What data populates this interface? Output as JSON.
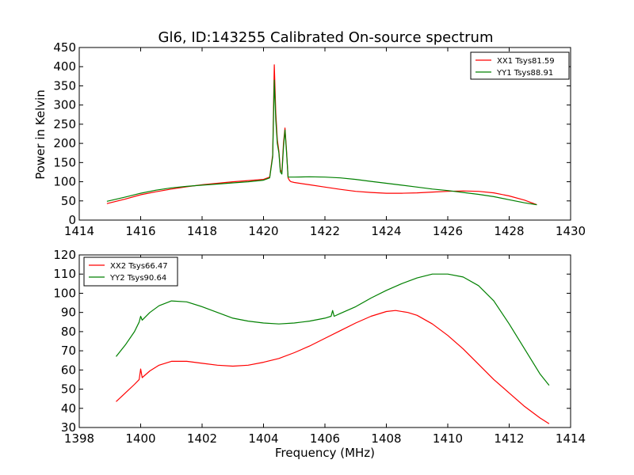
{
  "colors": {
    "series_red": "#ff0000",
    "series_green": "#008000",
    "frame": "#000000"
  },
  "chart_data": [
    {
      "type": "line",
      "title": "Gl6, ID:143255 Calibrated On-source spectrum",
      "xlabel": "",
      "ylabel": "Power in Kelvin",
      "xlim": [
        1414,
        1430
      ],
      "ylim": [
        0,
        450
      ],
      "xticks": [
        1414,
        1416,
        1418,
        1420,
        1422,
        1424,
        1426,
        1428,
        1430
      ],
      "yticks": [
        0,
        50,
        100,
        150,
        200,
        250,
        300,
        350,
        400,
        450
      ],
      "legend_position": "top-right",
      "series": [
        {
          "name": "XX1 Tsys81.59",
          "color": "#ff0000",
          "x": [
            1414.9,
            1415.5,
            1416.0,
            1416.5,
            1417.0,
            1417.5,
            1418.0,
            1418.5,
            1419.0,
            1419.5,
            1420.0,
            1420.2,
            1420.3,
            1420.35,
            1420.4,
            1420.45,
            1420.5,
            1420.55,
            1420.6,
            1420.65,
            1420.7,
            1420.75,
            1420.8,
            1420.85,
            1420.9,
            1421.0,
            1421.5,
            1422.0,
            1422.5,
            1423.0,
            1423.5,
            1424.0,
            1424.5,
            1425.0,
            1425.5,
            1426.0,
            1426.5,
            1427.0,
            1427.5,
            1428.0,
            1428.5,
            1428.9
          ],
          "values": [
            43,
            55,
            66,
            74,
            81,
            87,
            92,
            96,
            100,
            103,
            106,
            112,
            170,
            405,
            280,
            210,
            180,
            130,
            125,
            200,
            240,
            180,
            110,
            103,
            100,
            98,
            92,
            86,
            80,
            75,
            72,
            70,
            70,
            71,
            73,
            75,
            76,
            75,
            71,
            63,
            52,
            40
          ]
        },
        {
          "name": "YY1 Tsys88.91",
          "color": "#008000",
          "x": [
            1414.9,
            1415.5,
            1416.0,
            1416.5,
            1417.0,
            1417.5,
            1418.0,
            1418.5,
            1419.0,
            1419.5,
            1420.0,
            1420.2,
            1420.3,
            1420.35,
            1420.4,
            1420.45,
            1420.5,
            1420.55,
            1420.6,
            1420.65,
            1420.7,
            1420.75,
            1420.8,
            1420.85,
            1420.9,
            1421.0,
            1421.5,
            1422.0,
            1422.5,
            1423.0,
            1423.5,
            1424.0,
            1424.5,
            1425.0,
            1425.5,
            1426.0,
            1426.5,
            1427.0,
            1427.5,
            1428.0,
            1428.5,
            1428.9
          ],
          "values": [
            49,
            60,
            70,
            78,
            84,
            88,
            91,
            94,
            97,
            100,
            104,
            110,
            165,
            365,
            260,
            200,
            175,
            125,
            120,
            190,
            235,
            175,
            112,
            112,
            112,
            112,
            113,
            112,
            110,
            106,
            101,
            96,
            91,
            86,
            81,
            77,
            72,
            67,
            61,
            53,
            45,
            40
          ]
        }
      ]
    },
    {
      "type": "line",
      "title": "",
      "xlabel": "Frequency (MHz)",
      "ylabel": "",
      "xlim": [
        1398,
        1414
      ],
      "ylim": [
        30,
        120
      ],
      "xticks": [
        1398,
        1400,
        1402,
        1404,
        1406,
        1408,
        1410,
        1412,
        1414
      ],
      "yticks": [
        30,
        40,
        50,
        60,
        70,
        80,
        90,
        100,
        110,
        120
      ],
      "legend_position": "top-left",
      "series": [
        {
          "name": "XX2 Tsys66.47",
          "color": "#ff0000",
          "x": [
            1399.2,
            1399.5,
            1399.8,
            1399.95,
            1400.0,
            1400.05,
            1400.3,
            1400.6,
            1401.0,
            1401.5,
            1402.0,
            1402.5,
            1403.0,
            1403.5,
            1404.0,
            1404.5,
            1405.0,
            1405.5,
            1406.0,
            1406.5,
            1407.0,
            1407.5,
            1408.0,
            1408.3,
            1408.7,
            1409.0,
            1409.5,
            1410.0,
            1410.5,
            1411.0,
            1411.5,
            1412.0,
            1412.5,
            1413.0,
            1413.3
          ],
          "values": [
            43.5,
            48,
            52.5,
            55,
            60.5,
            56,
            59.5,
            62.5,
            64.5,
            64.5,
            63.5,
            62.5,
            62,
            62.5,
            64,
            66,
            69,
            72.5,
            76.5,
            80.5,
            84.5,
            88,
            90.5,
            91,
            90,
            88.5,
            84,
            78,
            71,
            63,
            55,
            48,
            41,
            35,
            32
          ]
        },
        {
          "name": "YY2 Tsys90.64",
          "color": "#008000",
          "x": [
            1399.2,
            1399.5,
            1399.8,
            1399.95,
            1400.0,
            1400.05,
            1400.3,
            1400.6,
            1401.0,
            1401.5,
            1402.0,
            1402.5,
            1403.0,
            1403.5,
            1404.0,
            1404.5,
            1405.0,
            1405.5,
            1406.0,
            1406.2,
            1406.25,
            1406.3,
            1406.5,
            1407.0,
            1407.5,
            1408.0,
            1408.5,
            1409.0,
            1409.5,
            1410.0,
            1410.5,
            1411.0,
            1411.5,
            1412.0,
            1412.5,
            1413.0,
            1413.3
          ],
          "values": [
            67,
            73,
            80,
            85,
            88,
            86,
            90,
            93.5,
            96,
            95.5,
            93,
            90,
            87,
            85.5,
            84.5,
            84,
            84.5,
            85.5,
            87,
            88,
            91,
            88,
            89.5,
            93,
            97.5,
            101.5,
            105,
            108,
            110,
            110,
            108.5,
            104,
            96,
            84,
            71,
            58,
            52
          ]
        }
      ]
    }
  ]
}
